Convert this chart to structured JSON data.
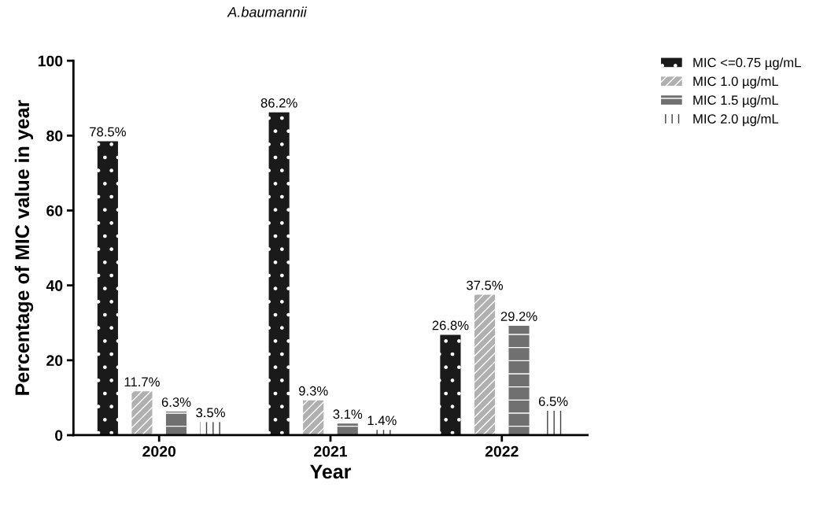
{
  "chart_data": {
    "type": "bar",
    "title": "A.baumannii",
    "xlabel": "Year",
    "ylabel": "Percentage of MIC value in year",
    "categories": [
      "2020",
      "2021",
      "2022"
    ],
    "series": [
      {
        "name": "MIC <=0.75 µg/mL",
        "color": "#1a1a1a",
        "values": [
          78.5,
          86.2,
          26.8
        ],
        "value_labels": [
          "78.5%",
          "86.2%",
          "26.8%"
        ]
      },
      {
        "name": "MIC 1.0 µg/mL",
        "color": "#b0b0b0",
        "values": [
          11.7,
          9.3,
          37.5
        ],
        "value_labels": [
          "11.7%",
          "9.3%",
          "37.5%"
        ]
      },
      {
        "name": "MIC 1.5 µg/mL",
        "color": "#707070",
        "values": [
          6.3,
          3.1,
          29.2
        ],
        "value_labels": [
          "6.3%",
          "3.1%",
          "29.2%"
        ]
      },
      {
        "name": "MIC 2.0 µg/mL",
        "color": "#404040",
        "values": [
          3.5,
          1.4,
          6.5
        ],
        "value_labels": [
          "3.5%",
          "1.4%",
          "6.5%"
        ]
      }
    ],
    "ylim": [
      0,
      100
    ],
    "yticks": [
      0,
      20,
      40,
      60,
      80,
      100
    ],
    "grid": false,
    "legend": "top right"
  }
}
